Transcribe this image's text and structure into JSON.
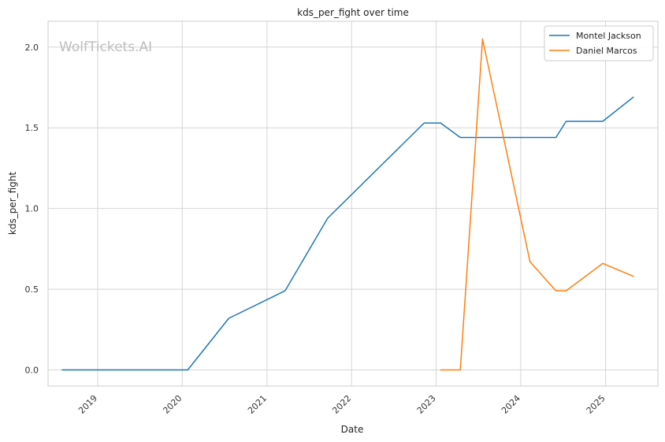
{
  "chart_data": {
    "type": "line",
    "title": "kds_per_fight over time",
    "xlabel": "Date",
    "ylabel": "kds_per_fight",
    "watermark": "WolfTickets.AI",
    "x_ticks": [
      "2019",
      "2020",
      "2021",
      "2022",
      "2023",
      "2024",
      "2025"
    ],
    "y_ticks": [
      "0.0",
      "0.5",
      "1.0",
      "1.5",
      "2.0"
    ],
    "xlim": [
      "2018-06-01",
      "2025-08-15"
    ],
    "ylim": [
      -0.1,
      2.16
    ],
    "grid": true,
    "legend_position": "top-right",
    "series": [
      {
        "name": "Montel Jackson",
        "color": "#1f77b4",
        "points": [
          [
            "2018-08-01",
            0.0
          ],
          [
            "2020-01-25",
            0.0
          ],
          [
            "2020-07-20",
            0.32
          ],
          [
            "2021-03-20",
            0.49
          ],
          [
            "2021-09-20",
            0.94
          ],
          [
            "2022-11-10",
            1.53
          ],
          [
            "2023-01-20",
            1.53
          ],
          [
            "2023-04-15",
            1.44
          ],
          [
            "2024-06-01",
            1.44
          ],
          [
            "2024-07-15",
            1.54
          ],
          [
            "2024-12-20",
            1.54
          ],
          [
            "2025-05-01",
            1.69
          ]
        ]
      },
      {
        "name": "Daniel Marcos",
        "color": "#ff7f0e",
        "points": [
          [
            "2023-01-20",
            0.0
          ],
          [
            "2023-04-15",
            0.0
          ],
          [
            "2023-07-20",
            2.05
          ],
          [
            "2024-02-10",
            0.67
          ],
          [
            "2024-06-01",
            0.49
          ],
          [
            "2024-07-15",
            0.49
          ],
          [
            "2024-12-20",
            0.66
          ],
          [
            "2025-05-01",
            0.58
          ]
        ]
      }
    ]
  }
}
